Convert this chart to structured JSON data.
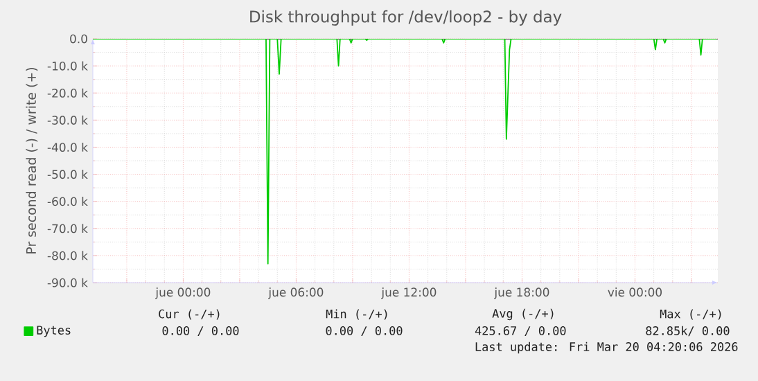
{
  "chart_data": {
    "type": "line",
    "title": "Disk throughput for /dev/loop2 - by day",
    "ylabel": "Pr second read (-) / write (+)",
    "x": [
      "2026-03-18T19:12",
      "2026-03-19T04:24",
      "2026-03-19T04:30",
      "2026-03-19T04:36",
      "2026-03-19T05:00",
      "2026-03-19T05:06",
      "2026-03-19T05:12",
      "2026-03-19T08:10",
      "2026-03-19T08:15",
      "2026-03-19T08:20",
      "2026-03-19T08:50",
      "2026-03-19T08:55",
      "2026-03-19T09:00",
      "2026-03-19T09:40",
      "2026-03-19T09:45",
      "2026-03-19T09:50",
      "2026-03-19T13:45",
      "2026-03-19T13:50",
      "2026-03-19T13:55",
      "2026-03-19T17:05",
      "2026-03-19T17:10",
      "2026-03-19T17:20",
      "2026-03-19T17:25",
      "2026-03-20T01:00",
      "2026-03-20T01:05",
      "2026-03-20T01:10",
      "2026-03-20T01:30",
      "2026-03-20T01:35",
      "2026-03-20T01:40",
      "2026-03-20T03:25",
      "2026-03-20T03:30",
      "2026-03-20T03:35",
      "2026-03-20T04:20"
    ],
    "series": [
      {
        "name": "Bytes",
        "color": "#00cc00",
        "values": [
          0,
          0,
          -83000,
          0,
          0,
          -13000,
          0,
          0,
          -10000,
          0,
          0,
          -1500,
          0,
          0,
          -500,
          0,
          0,
          -1500,
          0,
          0,
          -37000,
          -4000,
          0,
          0,
          -4000,
          0,
          0,
          -1500,
          0,
          0,
          -6000,
          0,
          0
        ]
      }
    ],
    "xlim": [
      "2026-03-18T19:12",
      "2026-03-20T04:24"
    ],
    "xticks": [
      {
        "value": "2026-03-18T21:00",
        "label": null
      },
      {
        "value": "2026-03-19T00:00",
        "label": "jue 00:00"
      },
      {
        "value": "2026-03-19T03:00",
        "label": null
      },
      {
        "value": "2026-03-19T06:00",
        "label": "jue 06:00"
      },
      {
        "value": "2026-03-19T09:00",
        "label": null
      },
      {
        "value": "2026-03-19T12:00",
        "label": "jue 12:00"
      },
      {
        "value": "2026-03-19T15:00",
        "label": null
      },
      {
        "value": "2026-03-19T18:00",
        "label": "jue 18:00"
      },
      {
        "value": "2026-03-19T21:00",
        "label": null
      },
      {
        "value": "2026-03-20T00:00",
        "label": "vie 00:00"
      },
      {
        "value": "2026-03-20T03:00",
        "label": null
      }
    ],
    "ylim": [
      -90000,
      0
    ],
    "yticks": [
      {
        "value": 0,
        "label": "0.0"
      },
      {
        "value": -10000,
        "label": "-10.0 k"
      },
      {
        "value": -20000,
        "label": "-20.0 k"
      },
      {
        "value": -30000,
        "label": "-30.0 k"
      },
      {
        "value": -40000,
        "label": "-40.0 k"
      },
      {
        "value": -50000,
        "label": "-50.0 k"
      },
      {
        "value": -60000,
        "label": "-60.0 k"
      },
      {
        "value": -70000,
        "label": "-70.0 k"
      },
      {
        "value": -80000,
        "label": "-80.0 k"
      },
      {
        "value": -90000,
        "label": "-90.0 k"
      }
    ],
    "grid": true,
    "legend": "bottom left",
    "marker": "none",
    "line_style": "solid",
    "ref_lines": [
      {
        "axis": "y",
        "value": 0,
        "color": "#000000"
      }
    ],
    "annotations": [
      "Cur (-/+)",
      "Min (-/+)",
      "Avg (-/+)",
      "Max (-/+)",
      "0.00 /   0.00",
      "0.00 /   0.00",
      "425.67 /   0.00",
      "82.85k/   0.00",
      "Last update: Fri Mar 20 04:20:06 2026"
    ]
  }
}
